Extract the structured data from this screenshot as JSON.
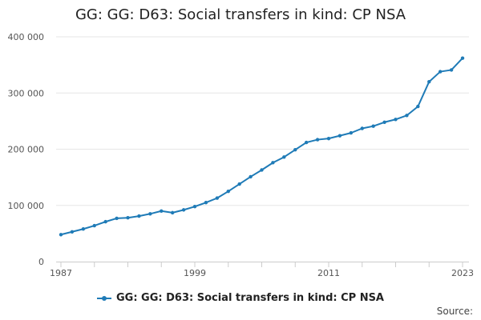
{
  "chart_data": {
    "type": "line",
    "title": "GG: GG: D63: Social transfers in kind: CP NSA",
    "xlabel": "",
    "ylabel": "",
    "xlim": [
      1987,
      2023
    ],
    "ylim": [
      0,
      400000
    ],
    "x_ticks": [
      1987,
      1999,
      2011,
      2023
    ],
    "x_tick_labels": [
      "1987",
      "1999",
      "2011",
      "2023"
    ],
    "y_ticks": [
      0,
      100000,
      200000,
      300000,
      400000
    ],
    "y_tick_labels": [
      "0",
      "100 000",
      "200 000",
      "300 000",
      "400 000"
    ],
    "grid": true,
    "legend_position": "bottom",
    "series": [
      {
        "name": "GG: GG: D63: Social transfers in kind: CP NSA",
        "color": "#1f7bb7",
        "x": [
          1987,
          1988,
          1989,
          1990,
          1991,
          1992,
          1993,
          1994,
          1995,
          1996,
          1997,
          1998,
          1999,
          2000,
          2001,
          2002,
          2003,
          2004,
          2005,
          2006,
          2007,
          2008,
          2009,
          2010,
          2011,
          2012,
          2013,
          2014,
          2015,
          2016,
          2017,
          2018,
          2019,
          2020,
          2021,
          2022,
          2023
        ],
        "values": [
          48000,
          53000,
          58000,
          64000,
          71000,
          77000,
          78000,
          81000,
          85000,
          90000,
          87000,
          92000,
          98000,
          105000,
          113000,
          125000,
          138000,
          151000,
          163000,
          176000,
          186000,
          199000,
          212000,
          217000,
          219000,
          224000,
          229000,
          237000,
          241000,
          248000,
          253000,
          260000,
          276000,
          320000,
          338000,
          341000,
          362000
        ]
      }
    ]
  },
  "legend": {
    "label": "GG: GG: D63: Social transfers in kind: CP NSA"
  },
  "source": {
    "label": "Source:"
  }
}
